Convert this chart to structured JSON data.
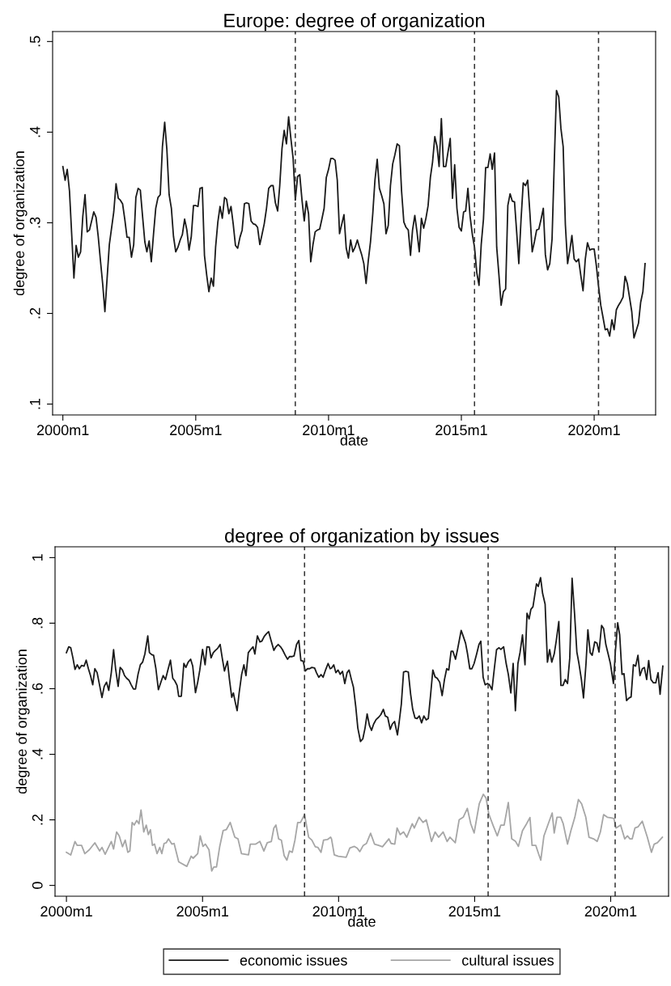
{
  "chart_data": [
    {
      "type": "line",
      "title": "Europe: degree of organization",
      "xlabel": "date",
      "ylabel": "degree of organization",
      "xlim": [
        "1999-08-13",
        "2022-04-25"
      ],
      "ylim": [
        0.088,
        0.511
      ],
      "xticks": [
        {
          "value": "2000-01",
          "label": "2000m1"
        },
        {
          "value": "2005-01",
          "label": "2005m1"
        },
        {
          "value": "2010-01",
          "label": "2010m1"
        },
        {
          "value": "2015-01",
          "label": "2015m1"
        },
        {
          "value": "2020-01",
          "label": "2020m1"
        }
      ],
      "yticks": [
        {
          "value": 0.1,
          "label": ".1"
        },
        {
          "value": 0.2,
          "label": ".2"
        },
        {
          "value": 0.3,
          "label": ".3"
        },
        {
          "value": 0.4,
          "label": ".4"
        },
        {
          "value": 0.5,
          "label": ".5"
        }
      ],
      "grid": false,
      "legend": false,
      "ref_lines": [
        {
          "axis": "x",
          "value": "2008-10",
          "color": "#333333",
          "line_style": "dashed"
        },
        {
          "axis": "x",
          "value": "2015-07",
          "color": "#333333",
          "line_style": "dashed"
        },
        {
          "axis": "x",
          "value": "2020-03",
          "color": "#333333",
          "line_style": "dashed"
        }
      ],
      "series": [
        {
          "color": "#1a1a1a",
          "x": [
            "2000-01",
            "2000-02",
            "2000-03",
            "2000-04",
            "2000-06",
            "2000-07",
            "2000-08",
            "2000-09",
            "2000-10",
            "2000-11",
            "2000-12",
            "2001-01",
            "2001-03",
            "2001-04",
            "2001-05",
            "2001-06",
            "2001-07",
            "2001-08",
            "2001-10",
            "2001-12",
            "2002-01",
            "2002-02",
            "2002-03",
            "2002-04",
            "2002-05",
            "2002-06",
            "2002-07",
            "2002-08",
            "2002-09",
            "2002-10",
            "2002-11",
            "2002-12",
            "2003-01",
            "2003-02",
            "2003-03",
            "2003-04",
            "2003-05",
            "2003-06",
            "2003-07",
            "2003-08",
            "2003-09",
            "2003-10",
            "2003-11",
            "2003-12",
            "2004-01",
            "2004-02",
            "2004-03",
            "2004-04",
            "2004-05",
            "2004-06",
            "2004-07",
            "2004-08",
            "2004-09",
            "2004-10",
            "2004-11",
            "2004-12",
            "2005-01",
            "2005-02",
            "2005-03",
            "2005-04",
            "2005-05",
            "2005-06",
            "2005-07",
            "2005-08",
            "2005-09",
            "2005-10",
            "2005-11",
            "2005-12",
            "2006-01",
            "2006-02",
            "2006-03",
            "2006-04",
            "2006-05",
            "2006-06",
            "2006-07",
            "2006-08",
            "2006-09",
            "2006-10",
            "2006-11",
            "2006-12",
            "2007-01",
            "2007-02",
            "2007-03",
            "2007-04",
            "2007-05",
            "2007-06",
            "2007-07",
            "2007-08",
            "2007-09",
            "2007-10",
            "2007-11",
            "2007-12",
            "2008-01",
            "2008-02",
            "2008-03",
            "2008-04",
            "2008-05",
            "2008-06",
            "2008-07",
            "2008-08",
            "2008-09",
            "2008-10",
            "2008-11",
            "2008-12",
            "2009-01",
            "2009-02",
            "2009-03",
            "2009-04",
            "2009-05",
            "2009-06",
            "2009-07",
            "2009-08",
            "2009-09",
            "2009-10",
            "2009-11",
            "2009-12",
            "2010-01",
            "2010-02",
            "2010-03",
            "2010-04",
            "2010-05",
            "2010-06",
            "2010-08",
            "2010-09",
            "2010-10",
            "2010-11",
            "2010-12",
            "2011-01",
            "2011-02",
            "2011-03",
            "2011-04",
            "2011-05",
            "2011-06",
            "2011-07",
            "2011-08",
            "2011-09",
            "2011-10",
            "2011-11",
            "2011-12",
            "2012-01",
            "2012-02",
            "2012-03",
            "2012-04",
            "2012-05",
            "2012-06",
            "2012-07",
            "2012-08",
            "2012-09",
            "2012-10",
            "2012-11",
            "2012-12",
            "2013-01",
            "2013-02",
            "2013-03",
            "2013-04",
            "2013-05",
            "2013-06",
            "2013-07",
            "2013-08",
            "2013-09",
            "2013-10",
            "2013-11",
            "2013-12",
            "2014-01",
            "2014-02",
            "2014-03",
            "2014-04",
            "2014-05",
            "2014-06",
            "2014-07",
            "2014-08",
            "2014-09",
            "2014-10",
            "2014-11",
            "2014-12",
            "2015-01",
            "2015-02",
            "2015-03",
            "2015-04",
            "2015-05",
            "2015-06",
            "2015-07",
            "2015-08",
            "2015-09",
            "2015-10",
            "2015-11",
            "2015-12",
            "2016-01",
            "2016-02",
            "2016-03",
            "2016-04",
            "2016-05",
            "2016-06",
            "2016-07",
            "2016-08",
            "2016-09",
            "2016-10",
            "2016-11",
            "2016-12",
            "2017-01",
            "2017-02",
            "2017-03",
            "2017-04",
            "2017-05",
            "2017-06",
            "2017-07",
            "2017-08",
            "2017-09",
            "2017-10",
            "2017-11",
            "2017-12",
            "2018-01",
            "2018-02",
            "2018-03",
            "2018-04",
            "2018-05",
            "2018-06",
            "2018-07",
            "2018-08",
            "2018-09",
            "2018-10",
            "2018-11",
            "2018-12",
            "2019-01",
            "2019-02",
            "2019-03",
            "2019-04",
            "2019-05",
            "2019-06",
            "2019-07",
            "2019-08",
            "2019-09",
            "2019-10",
            "2019-11",
            "2019-12",
            "2020-01",
            "2020-02",
            "2020-03",
            "2020-04",
            "2020-05",
            "2020-06",
            "2020-07",
            "2020-08",
            "2020-09",
            "2020-10",
            "2020-11",
            "2020-12",
            "2021-01",
            "2021-02",
            "2021-03",
            "2021-04",
            "2021-05",
            "2021-06",
            "2021-07",
            "2021-08",
            "2021-09",
            "2021-10",
            "2021-11",
            "2021-12"
          ],
          "values": [
            0.362,
            0.347,
            0.359,
            0.335,
            0.239,
            0.275,
            0.262,
            0.268,
            0.307,
            0.331,
            0.29,
            0.292,
            0.312,
            0.306,
            0.285,
            0.258,
            0.233,
            0.202,
            0.276,
            0.312,
            0.343,
            0.327,
            0.325,
            0.321,
            0.304,
            0.284,
            0.284,
            0.262,
            0.276,
            0.328,
            0.338,
            0.336,
            0.307,
            0.279,
            0.268,
            0.28,
            0.257,
            0.288,
            0.316,
            0.328,
            0.331,
            0.384,
            0.411,
            0.381,
            0.331,
            0.316,
            0.285,
            0.268,
            0.273,
            0.281,
            0.287,
            0.304,
            0.292,
            0.27,
            0.285,
            0.319,
            0.319,
            0.318,
            0.338,
            0.339,
            0.264,
            0.242,
            0.224,
            0.239,
            0.23,
            0.273,
            0.301,
            0.318,
            0.305,
            0.328,
            0.326,
            0.31,
            0.318,
            0.298,
            0.275,
            0.272,
            0.284,
            0.292,
            0.321,
            0.322,
            0.321,
            0.302,
            0.299,
            0.298,
            0.295,
            0.276,
            0.287,
            0.299,
            0.316,
            0.338,
            0.341,
            0.341,
            0.322,
            0.313,
            0.341,
            0.382,
            0.402,
            0.387,
            0.417,
            0.393,
            0.371,
            0.325,
            0.351,
            0.353,
            0.325,
            0.302,
            0.324,
            0.31,
            0.257,
            0.276,
            0.29,
            0.292,
            0.293,
            0.304,
            0.316,
            0.35,
            0.359,
            0.371,
            0.371,
            0.369,
            0.347,
            0.288,
            0.309,
            0.272,
            0.261,
            0.281,
            0.268,
            0.273,
            0.281,
            0.273,
            0.265,
            0.255,
            0.233,
            0.258,
            0.279,
            0.31,
            0.347,
            0.37,
            0.338,
            0.33,
            0.321,
            0.288,
            0.297,
            0.341,
            0.365,
            0.375,
            0.387,
            0.385,
            0.335,
            0.301,
            0.295,
            0.292,
            0.264,
            0.292,
            0.308,
            0.29,
            0.268,
            0.305,
            0.294,
            0.305,
            0.319,
            0.35,
            0.367,
            0.395,
            0.384,
            0.362,
            0.415,
            0.362,
            0.362,
            0.378,
            0.393,
            0.327,
            0.364,
            0.316,
            0.295,
            0.291,
            0.312,
            0.313,
            0.338,
            0.307,
            0.287,
            0.273,
            0.245,
            0.231,
            0.276,
            0.304,
            0.361,
            0.361,
            0.376,
            0.359,
            0.377,
            0.273,
            0.242,
            0.209,
            0.224,
            0.227,
            0.319,
            0.332,
            0.324,
            0.323,
            0.288,
            0.255,
            0.304,
            0.344,
            0.341,
            0.347,
            0.31,
            0.268,
            0.279,
            0.292,
            0.293,
            0.304,
            0.316,
            0.265,
            0.248,
            0.255,
            0.282,
            0.365,
            0.446,
            0.439,
            0.404,
            0.384,
            0.298,
            0.255,
            0.27,
            0.286,
            0.26,
            0.257,
            0.26,
            0.242,
            0.225,
            0.26,
            0.278,
            0.27,
            0.271,
            0.271,
            0.252,
            0.23,
            0.209,
            0.196,
            0.182,
            0.183,
            0.175,
            0.193,
            0.182,
            0.204,
            0.209,
            0.213,
            0.218,
            0.241,
            0.233,
            0.218,
            0.202,
            0.173,
            0.181,
            0.189,
            0.212,
            0.224,
            0.255
          ]
        }
      ]
    },
    {
      "type": "line",
      "title": "degree of organization by issues",
      "xlabel": "date",
      "ylabel": "degree of organization",
      "xlim": [
        "1999-08-01",
        "2022-02-16"
      ],
      "ylim": [
        -0.033,
        1.033
      ],
      "xticks": [
        {
          "value": "2000-01",
          "label": "2000m1"
        },
        {
          "value": "2005-01",
          "label": "2005m1"
        },
        {
          "value": "2010-01",
          "label": "2010m1"
        },
        {
          "value": "2015-01",
          "label": "2015m1"
        },
        {
          "value": "2020-01",
          "label": "2020m1"
        }
      ],
      "yticks": [
        0,
        {
          "value": 0.2,
          "label": ".2"
        },
        {
          "value": 0.4,
          "label": ".4"
        },
        {
          "value": 0.6,
          "label": ".6"
        },
        {
          "value": 0.8,
          "label": ".8"
        },
        1
      ],
      "grid": false,
      "legend": "bottom",
      "ref_lines": [
        {
          "axis": "x",
          "value": "2008-10",
          "color": "#333333",
          "line_style": "dashed"
        },
        {
          "axis": "x",
          "value": "2015-07",
          "color": "#333333",
          "line_style": "dashed"
        },
        {
          "axis": "x",
          "value": "2020-03",
          "color": "#333333",
          "line_style": "dashed"
        }
      ],
      "series": [
        {
          "name": "economic issues",
          "color": "#1a1a1a",
          "x": [
            "2000-01-01",
            "2000-02-01",
            "2000-02-28",
            "2000-03-28",
            "2000-04-25",
            "2000-05-25",
            "2000-06-22",
            "2000-07-22",
            "2000-08-25",
            "2000-09-22",
            "2000-10-22",
            "2000-11-19",
            "2000-12-19",
            "2001-01-16",
            "2001-02-16",
            "2001-03-13",
            "2001-04-22",
            "2001-05-22",
            "2001-06-22",
            "2001-07-22",
            "2001-08-25",
            "2001-09-25",
            "2001-10-22",
            "2001-11-25",
            "2001-12-22",
            "2002-01-22",
            "2002-02-19",
            "2002-03-19",
            "2002-04-19",
            "2002-05-19",
            "2002-06-19",
            "2002-07-16",
            "2002-08-19",
            "2002-09-19",
            "2002-10-19",
            "2002-11-19",
            "2002-12-28",
            "2003-01-19",
            "2003-02-19",
            "2003-03-16",
            "2003-04-16",
            "2003-05-19",
            "2003-06-16",
            "2003-07-22",
            "2003-08-22",
            "2003-09-19",
            "2003-10-28",
            "2003-11-28",
            "2003-12-25",
            "2004-01-25",
            "2004-02-16",
            "2004-03-22",
            "2004-04-25",
            "2004-05-22",
            "2004-06-22",
            "2004-07-25",
            "2004-08-22",
            "2004-09-28",
            "2004-10-28",
            "2004-11-25",
            "2005-01-01",
            "2005-02-04",
            "2005-03-01",
            "2005-04-01",
            "2005-04-25",
            "2005-05-25",
            "2005-06-22",
            "2005-07-22",
            "2005-08-25",
            "2005-09-22",
            "2005-10-22",
            "2005-12-01",
            "2005-12-28",
            "2006-01-28",
            "2006-02-19",
            "2006-03-13",
            "2006-04-10",
            "2006-05-07",
            "2006-06-10",
            "2006-07-10",
            "2006-08-07",
            "2006-09-07",
            "2006-10-07",
            "2006-11-10",
            "2006-12-04",
            "2007-01-07",
            "2007-02-10",
            "2007-03-07",
            "2007-04-10",
            "2007-05-10",
            "2007-06-07",
            "2007-07-10",
            "2007-08-16",
            "2007-09-13",
            "2007-10-13",
            "2007-11-13",
            "2007-12-10",
            "2008-01-16",
            "2008-02-16",
            "2008-03-13",
            "2008-04-13",
            "2008-05-13",
            "2008-06-16",
            "2008-07-16",
            "2008-08-13",
            "2008-09-13",
            "2008-10-10",
            "2008-11-10",
            "2008-12-07",
            "2009-01-07",
            "2009-02-13",
            "2009-03-10",
            "2009-04-10",
            "2009-05-10",
            "2009-06-07",
            "2009-07-13",
            "2009-08-13",
            "2009-09-10",
            "2009-09-28",
            "2009-10-28",
            "2009-11-25",
            "2009-12-25",
            "2010-01-22",
            "2010-02-22",
            "2010-03-25",
            "2010-04-25",
            "2010-05-22",
            "2010-06-22",
            "2010-07-19",
            "2010-08-19",
            "2010-09-16",
            "2010-10-22",
            "2010-11-22",
            "2010-12-22",
            "2011-01-19",
            "2011-02-19",
            "2011-03-19",
            "2011-04-16",
            "2011-05-19",
            "2011-06-22",
            "2011-07-22",
            "2011-08-25",
            "2011-09-19",
            "2011-10-22",
            "2011-11-25",
            "2011-12-22",
            "2012-01-22",
            "2012-03-01",
            "2012-03-25",
            "2012-04-22",
            "2012-05-22",
            "2012-06-25",
            "2012-07-25",
            "2012-08-25",
            "2012-09-22",
            "2012-10-22",
            "2012-11-19",
            "2012-12-19",
            "2013-01-19",
            "2013-02-19",
            "2013-03-22",
            "2013-04-19",
            "2013-05-19",
            "2013-06-19",
            "2013-07-19",
            "2013-08-16",
            "2013-09-19",
            "2013-10-22",
            "2013-11-22",
            "2013-12-22",
            "2014-01-19",
            "2014-02-19",
            "2014-03-16",
            "2014-04-19",
            "2014-05-16",
            "2014-07-04",
            "2014-08-01",
            "2014-09-01",
            "2014-09-28",
            "2014-10-28",
            "2014-11-25",
            "2014-12-25",
            "2015-01-28",
            "2015-02-28",
            "2015-03-25",
            "2015-04-25",
            "2015-05-22",
            "2015-06-22",
            "2015-07-19",
            "2015-08-22",
            "2015-09-22",
            "2015-10-22",
            "2015-11-22",
            "2015-12-19",
            "2016-01-25",
            "2016-02-28",
            "2016-03-28",
            "2016-05-01",
            "2016-06-01",
            "2016-07-01",
            "2016-08-04",
            "2016-09-01",
            "2016-10-04",
            "2016-11-07",
            "2016-12-04",
            "2017-01-01",
            "2017-01-25",
            "2017-02-22",
            "2017-03-19",
            "2017-04-10",
            "2017-05-04",
            "2017-06-04",
            "2017-07-01",
            "2017-08-04",
            "2017-09-04",
            "2017-10-04",
            "2017-11-01",
            "2017-12-04",
            "2018-01-01",
            "2018-02-04",
            "2018-03-04",
            "2018-04-01",
            "2018-05-01",
            "2018-06-01",
            "2018-07-01",
            "2018-08-01",
            "2018-09-04",
            "2018-10-04",
            "2018-11-01",
            "2018-12-04",
            "2019-01-01",
            "2019-02-04",
            "2019-03-01",
            "2019-04-01",
            "2019-04-28",
            "2019-06-01",
            "2019-07-01",
            "2019-07-28",
            "2019-09-01",
            "2019-09-28",
            "2019-10-28",
            "2019-11-28",
            "2019-12-28",
            "2020-02-07",
            "2020-03-04",
            "2020-04-04",
            "2020-05-01",
            "2020-06-01",
            "2020-06-28",
            "2020-08-01",
            "2020-09-04",
            "2020-10-01",
            "2020-11-01",
            "2020-12-01",
            "2021-01-01",
            "2021-01-28",
            "2021-03-01",
            "2021-03-28",
            "2021-04-28",
            "2021-05-25",
            "2021-06-25",
            "2021-07-28",
            "2021-08-28",
            "2021-09-28",
            "2021-10-25",
            "2021-12-01"
          ],
          "values": [
            0.71,
            0.728,
            0.725,
            0.694,
            0.659,
            0.673,
            0.661,
            0.671,
            0.669,
            0.687,
            0.661,
            0.64,
            0.612,
            0.661,
            0.649,
            0.62,
            0.573,
            0.607,
            0.62,
            0.595,
            0.649,
            0.719,
            0.661,
            0.607,
            0.665,
            0.657,
            0.64,
            0.632,
            0.626,
            0.612,
            0.599,
            0.599,
            0.644,
            0.673,
            0.681,
            0.706,
            0.761,
            0.71,
            0.704,
            0.702,
            0.661,
            0.597,
            0.616,
            0.64,
            0.628,
            0.653,
            0.687,
            0.632,
            0.624,
            0.61,
            0.577,
            0.577,
            0.677,
            0.665,
            0.681,
            0.69,
            0.669,
            0.588,
            0.62,
            0.657,
            0.72,
            0.673,
            0.728,
            0.727,
            0.694,
            0.71,
            0.717,
            0.723,
            0.735,
            0.694,
            0.654,
            0.684,
            0.628,
            0.574,
            0.587,
            0.562,
            0.533,
            0.587,
            0.644,
            0.673,
            0.64,
            0.71,
            0.719,
            0.728,
            0.706,
            0.761,
            0.743,
            0.745,
            0.76,
            0.768,
            0.774,
            0.747,
            0.717,
            0.728,
            0.735,
            0.728,
            0.719,
            0.702,
            0.69,
            0.698,
            0.698,
            0.7,
            0.735,
            0.747,
            0.686,
            0.684,
            0.654,
            0.661,
            0.661,
            0.665,
            0.663,
            0.649,
            0.635,
            0.643,
            0.635,
            0.659,
            0.677,
            0.661,
            0.663,
            0.673,
            0.649,
            0.657,
            0.644,
            0.653,
            0.616,
            0.649,
            0.657,
            0.628,
            0.605,
            0.546,
            0.48,
            0.439,
            0.447,
            0.48,
            0.523,
            0.488,
            0.473,
            0.492,
            0.506,
            0.513,
            0.521,
            0.537,
            0.517,
            0.513,
            0.476,
            0.492,
            0.5,
            0.459,
            0.5,
            0.553,
            0.651,
            0.653,
            0.651,
            0.583,
            0.537,
            0.511,
            0.509,
            0.517,
            0.496,
            0.517,
            0.505,
            0.509,
            0.579,
            0.657,
            0.636,
            0.632,
            0.62,
            0.579,
            0.628,
            0.661,
            0.657,
            0.714,
            0.714,
            0.69,
            0.719,
            0.778,
            0.76,
            0.739,
            0.706,
            0.661,
            0.661,
            0.677,
            0.706,
            0.735,
            0.745,
            0.635,
            0.612,
            0.616,
            0.612,
            0.597,
            0.661,
            0.719,
            0.725,
            0.72,
            0.728,
            0.677,
            0.644,
            0.587,
            0.677,
            0.533,
            0.677,
            0.71,
            0.764,
            0.673,
            0.83,
            0.813,
            0.842,
            0.85,
            0.887,
            0.92,
            0.912,
            0.939,
            0.891,
            0.858,
            0.681,
            0.719,
            0.681,
            0.706,
            0.747,
            0.805,
            0.61,
            0.61,
            0.628,
            0.616,
            0.694,
            0.937,
            0.826,
            0.712,
            0.677,
            0.628,
            0.572,
            0.677,
            0.78,
            0.71,
            0.702,
            0.743,
            0.739,
            0.712,
            0.793,
            0.784,
            0.735,
            0.706,
            0.677,
            0.616,
            0.714,
            0.801,
            0.764,
            0.644,
            0.646,
            0.564,
            0.572,
            0.575,
            0.673,
            0.669,
            0.702,
            0.64,
            0.661,
            0.665,
            0.628,
            0.686,
            0.628,
            0.618,
            0.618,
            0.649,
            0.583,
            0.669
          ]
        },
        {
          "name": "cultural issues",
          "color": "#a6a6a6",
          "x": [
            "2000-01-01",
            "2000-02-28",
            "2000-04-25",
            "2000-05-25",
            "2000-07-22",
            "2000-09-04",
            "2000-11-04",
            "2001-01-16",
            "2001-03-22",
            "2001-04-22",
            "2001-06-04",
            "2001-08-25",
            "2001-09-25",
            "2001-11-04",
            "2001-12-10",
            "2002-01-22",
            "2002-02-28",
            "2002-04-04",
            "2002-05-01",
            "2002-06-01",
            "2002-06-28",
            "2002-08-01",
            "2002-09-01",
            "2002-09-28",
            "2002-11-04",
            "2002-12-07",
            "2003-01-04",
            "2003-02-01",
            "2003-02-28",
            "2003-03-28",
            "2003-05-01",
            "2003-06-07",
            "2003-07-04",
            "2003-08-04",
            "2003-09-01",
            "2003-10-01",
            "2003-11-16",
            "2003-12-16",
            "2004-02-16",
            "2004-06-04",
            "2004-08-01",
            "2004-08-28",
            "2004-10-28",
            "2004-12-01",
            "2005-01-07",
            "2005-02-07",
            "2005-03-28",
            "2005-05-04",
            "2005-06-01",
            "2005-07-07",
            "2005-08-19",
            "2005-10-04",
            "2005-11-16",
            "2006-01-07",
            "2006-03-10",
            "2006-04-22",
            "2006-06-07",
            "2006-09-10",
            "2006-10-04",
            "2006-12-16",
            "2007-02-10",
            "2007-04-04",
            "2007-05-19",
            "2007-07-13",
            "2007-08-16",
            "2007-09-13",
            "2007-10-19",
            "2007-11-25",
            "2008-01-01",
            "2008-02-07",
            "2008-03-13",
            "2008-04-19",
            "2008-05-25",
            "2008-07-01",
            "2008-08-07",
            "2008-10-01",
            "2008-11-25",
            "2009-01-07",
            "2009-02-22",
            "2009-03-28",
            "2009-05-10",
            "2009-06-13",
            "2009-08-04",
            "2009-09-16",
            "2009-09-28",
            "2009-11-04",
            "2009-12-28",
            "2010-04-13",
            "2010-06-01",
            "2010-08-01",
            "2010-09-07",
            "2010-10-13",
            "2010-11-28",
            "2011-01-10",
            "2011-03-07",
            "2011-04-28",
            "2011-06-22",
            "2011-08-13",
            "2011-11-07",
            "2011-12-07",
            "2012-01-25",
            "2012-02-25",
            "2012-04-07",
            "2012-05-22",
            "2012-07-04",
            "2012-09-16",
            "2012-10-13",
            "2012-12-16",
            "2013-02-07",
            "2013-03-22",
            "2013-05-07",
            "2013-06-01",
            "2013-07-19",
            "2013-09-04",
            "2013-11-04",
            "2013-12-28",
            "2014-02-04",
            "2014-04-16",
            "2014-06-07",
            "2014-08-01",
            "2014-09-25",
            "2014-11-10",
            "2014-12-25",
            "2015-03-04",
            "2015-04-28",
            "2015-06-04",
            "2015-07-10",
            "2015-09-04",
            "2015-11-01",
            "2015-12-19",
            "2016-02-01",
            "2016-03-28",
            "2016-05-13",
            "2016-07-04",
            "2016-08-10",
            "2016-10-04",
            "2016-11-28",
            "2017-01-13",
            "2017-02-10",
            "2017-04-01",
            "2017-05-07",
            "2017-06-07",
            "2017-07-19",
            "2017-09-22",
            "2017-11-07",
            "2017-12-04",
            "2018-01-10",
            "2018-03-01",
            "2018-04-04",
            "2018-06-01",
            "2018-07-16",
            "2018-09-07",
            "2018-10-25",
            "2018-12-07",
            "2019-02-01",
            "2019-03-16",
            "2019-05-16",
            "2019-07-04",
            "2019-08-16",
            "2019-09-28",
            "2019-11-16",
            "2020-01-07",
            "2020-02-13",
            "2020-03-13",
            "2020-05-13",
            "2020-07-07",
            "2020-08-13",
            "2020-09-16",
            "2020-10-16",
            "2020-11-22",
            "2021-01-04",
            "2021-02-28",
            "2021-05-07",
            "2021-07-01",
            "2021-08-07",
            "2021-09-19",
            "2021-11-25"
          ],
          "values": [
            0.101,
            0.093,
            0.134,
            0.122,
            0.122,
            0.097,
            0.109,
            0.13,
            0.105,
            0.116,
            0.095,
            0.134,
            0.111,
            0.163,
            0.151,
            0.118,
            0.138,
            0.101,
            0.105,
            0.192,
            0.184,
            0.198,
            0.188,
            0.23,
            0.163,
            0.184,
            0.155,
            0.17,
            0.122,
            0.126,
            0.097,
            0.116,
            0.097,
            0.128,
            0.13,
            0.142,
            0.126,
            0.128,
            0.072,
            0.058,
            0.089,
            0.083,
            0.097,
            0.151,
            0.119,
            0.126,
            0.109,
            0.044,
            0.056,
            0.056,
            0.118,
            0.167,
            0.17,
            0.192,
            0.147,
            0.142,
            0.097,
            0.093,
            0.126,
            0.126,
            0.134,
            0.105,
            0.13,
            0.134,
            0.175,
            0.184,
            0.142,
            0.138,
            0.091,
            0.077,
            0.105,
            0.101,
            0.138,
            0.192,
            0.192,
            0.216,
            0.147,
            0.138,
            0.118,
            0.116,
            0.101,
            0.138,
            0.14,
            0.147,
            0.142,
            0.093,
            0.089,
            0.086,
            0.114,
            0.119,
            0.114,
            0.103,
            0.122,
            0.128,
            0.159,
            0.126,
            0.122,
            0.118,
            0.142,
            0.128,
            0.126,
            0.175,
            0.155,
            0.163,
            0.147,
            0.188,
            0.175,
            0.208,
            0.192,
            0.2,
            0.159,
            0.134,
            0.163,
            0.147,
            0.163,
            0.134,
            0.147,
            0.13,
            0.2,
            0.208,
            0.235,
            0.188,
            0.16,
            0.249,
            0.278,
            0.266,
            0.218,
            0.184,
            0.151,
            0.184,
            0.184,
            0.253,
            0.142,
            0.134,
            0.119,
            0.167,
            0.188,
            0.207,
            0.122,
            0.122,
            0.097,
            0.077,
            0.151,
            0.192,
            0.221,
            0.16,
            0.208,
            0.208,
            0.188,
            0.126,
            0.167,
            0.208,
            0.262,
            0.249,
            0.208,
            0.147,
            0.142,
            0.134,
            0.163,
            0.216,
            0.208,
            0.206,
            0.204,
            0.175,
            0.184,
            0.142,
            0.151,
            0.142,
            0.142,
            0.175,
            0.179,
            0.196,
            0.147,
            0.101,
            0.126,
            0.13,
            0.147
          ]
        }
      ]
    }
  ]
}
